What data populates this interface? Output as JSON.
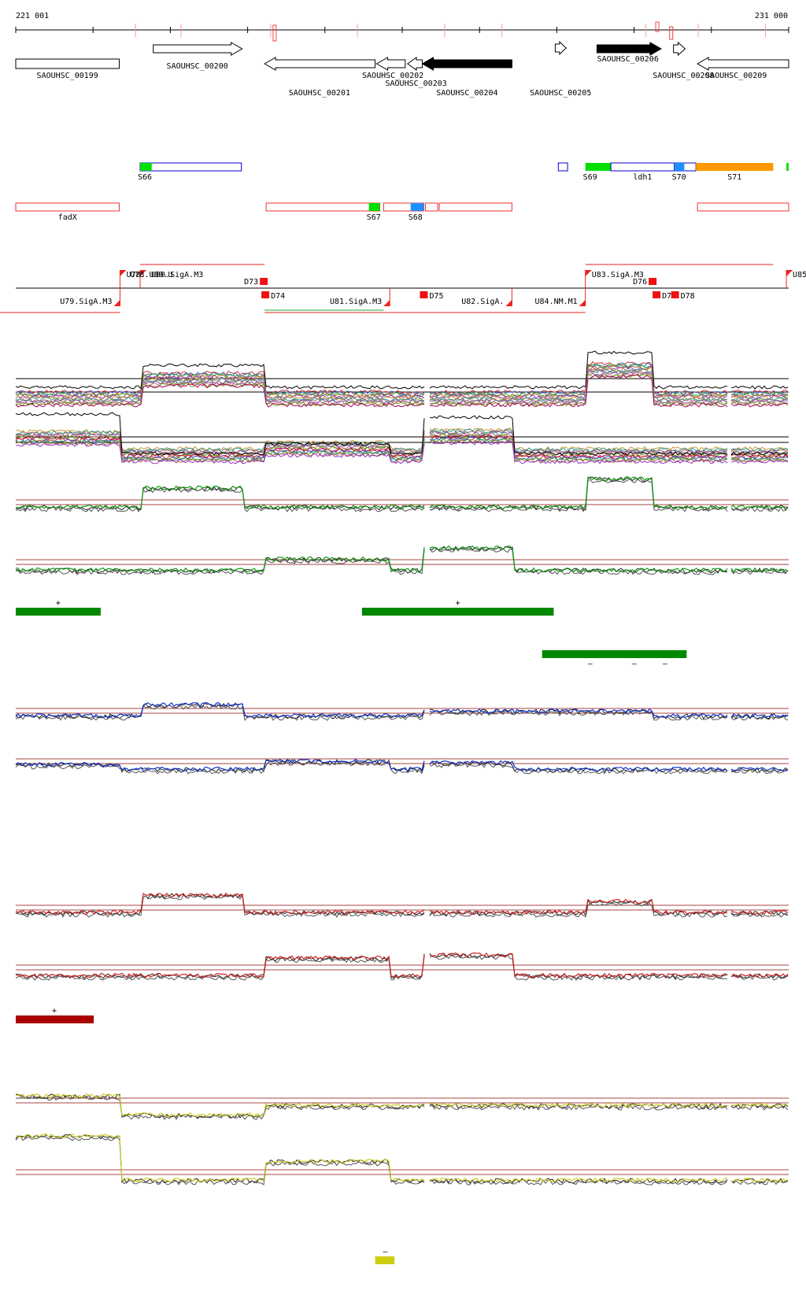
{
  "coordinates": {
    "start_label": "221 001",
    "end_label": "231 000",
    "start": 221001,
    "end": 231000
  },
  "genes": [
    {
      "name": "SAOUHSC_00199",
      "start": 221001,
      "end": 222340,
      "strand": "none",
      "filled": false
    },
    {
      "name": "SAOUHSC_00200",
      "start": 222780,
      "end": 223930,
      "strand": "+",
      "filled": false
    },
    {
      "name": "SAOUHSC_00201",
      "start": 224220,
      "end": 225650,
      "strand": "-",
      "filled": false
    },
    {
      "name": "SAOUHSC_00202",
      "start": 225670,
      "end": 226040,
      "strand": "-",
      "filled": false
    },
    {
      "name": "SAOUHSC_00203",
      "start": 226070,
      "end": 226260,
      "strand": "-",
      "filled": false
    },
    {
      "name": "SAOUHSC_00204",
      "start": 226260,
      "end": 227420,
      "strand": "-",
      "filled": true
    },
    {
      "name": "SAOUHSC_00205",
      "start": 227980,
      "end": 228120,
      "strand": "+",
      "filled": false
    },
    {
      "name": "SAOUHSC_00206",
      "start": 228520,
      "end": 229350,
      "strand": "+",
      "filled": true
    },
    {
      "name": "SAOUHSC_00208",
      "start": 229510,
      "end": 229660,
      "strand": "+",
      "filled": false
    },
    {
      "name": "SAOUHSC_00209",
      "start": 229820,
      "end": 231000,
      "strand": "-",
      "filled": false
    }
  ],
  "gene_labels": [
    {
      "text": "SAOUHSC_00199",
      "pos": 221670,
      "row": 0
    },
    {
      "text": "SAOUHSC_00200",
      "pos": 223350,
      "row": 1
    },
    {
      "text": "SAOUHSC_00201",
      "pos": 224930,
      "row": 2
    },
    {
      "text": "SAOUHSC_00202",
      "pos": 225880,
      "row": 3
    },
    {
      "text": "SAOUHSC_00203",
      "pos": 226180,
      "row": 4
    },
    {
      "text": "SAOUHSC_00204",
      "pos": 226840,
      "row": 2
    },
    {
      "text": "SAOUHSC_00205",
      "pos": 228050,
      "row": 5
    },
    {
      "text": "SAOUHSC_00206",
      "pos": 228920,
      "row": 6
    },
    {
      "text": "SAOUHSC_00208",
      "pos": 229640,
      "row": 3
    },
    {
      "text": "SAOUHSC_00209",
      "pos": 230320,
      "row": 3
    }
  ],
  "plus_features": [
    {
      "label": "S66",
      "start": 222610,
      "end": 223920,
      "marker_end": 222760,
      "marker_color": "#00e000",
      "box_color": "#0000cc"
    },
    {
      "label": "",
      "start": 228020,
      "end": 228140,
      "box_color": "#0000cc"
    },
    {
      "label": "S69",
      "start": 228370,
      "end": 228700,
      "marker_end": 228700,
      "marker_color": "#00e000",
      "box_color": "#00e000"
    },
    {
      "label": "ldh1",
      "start": 228700,
      "end": 229520,
      "box_color": "#0000cc"
    },
    {
      "label": "S70",
      "start": 229520,
      "end": 229800,
      "marker_end": 229650,
      "marker_color": "#1e90ff",
      "box_color": "#0000cc"
    },
    {
      "label": "S71",
      "start": 229800,
      "end": 230800,
      "marker_end": 230800,
      "marker_color": "#ff9900",
      "box_color": "#ff9900"
    },
    {
      "label": "",
      "start": 230970,
      "end": 231000,
      "marker_end": 231000,
      "marker_color": "#00e000",
      "box_color": "#00e000"
    }
  ],
  "minus_features": [
    {
      "label": "fadX",
      "start": 221001,
      "end": 222340,
      "box_color": "#ee3333"
    },
    {
      "label": "S67",
      "start": 224240,
      "end": 225710,
      "marker_start": 225570,
      "marker_color": "#00e000"
    },
    {
      "label": "S68",
      "start": 225760,
      "end": 226280,
      "marker_start": 226110,
      "marker_color": "#1e90ff"
    },
    {
      "label": "",
      "start": 226300,
      "end": 226460
    },
    {
      "label": "",
      "start": 226480,
      "end": 227420
    },
    {
      "label": "",
      "start": 229820,
      "end": 231000
    }
  ],
  "promoters_plus": [
    {
      "label": "U78.",
      "pos": 222350
    },
    {
      "label": "U80.SigA.M3",
      "pos": 222610
    },
    {
      "label": "U83.SigA.M3",
      "pos": 228370
    },
    {
      "label": "U85",
      "pos": 230970
    }
  ],
  "promoter_overlap_label": "U78.U80.U",
  "promoters_minus": [
    {
      "label": "U79.SigA.M3",
      "pos": 222350
    },
    {
      "label": "U81.SigA.M3",
      "pos": 225840
    },
    {
      "label": "U82.SigA.",
      "pos": 227420
    },
    {
      "label": "U84.NM.M1",
      "pos": 228370
    }
  ],
  "terminators_plus": [
    {
      "label": "D73",
      "pos": 224220
    },
    {
      "label": "D76",
      "pos": 229250
    }
  ],
  "terminators_minus": [
    {
      "label": "D74",
      "pos": 224220
    },
    {
      "label": "D75",
      "pos": 226270
    },
    {
      "label": "D77",
      "pos": 229280
    },
    {
      "label": "D78",
      "pos": 229520
    }
  ],
  "up_regions": [
    {
      "color": "#008800",
      "start": 221001,
      "end": 222100,
      "row": "plus",
      "sign": "+",
      "sign_pos": 221550
    },
    {
      "color": "#008800",
      "start": 225480,
      "end": 227960,
      "row": "plus",
      "sign": "+",
      "sign_pos": 226720
    },
    {
      "color": "#008800",
      "start": 227810,
      "end": 229680,
      "row": "minus",
      "sign": "–",
      "sign_pos": 228430
    },
    {
      "color": "#008800",
      "start": 229000,
      "end": 229000,
      "row": "minus",
      "sign": "–",
      "sign_pos": 229000
    },
    {
      "color": "#008800",
      "start": 229400,
      "end": 229400,
      "row": "minus",
      "sign": "–",
      "sign_pos": 229400
    },
    {
      "color": "#aa0000",
      "start": 221001,
      "end": 222010,
      "row": "plus",
      "sign": "+",
      "sign_pos": 221500
    },
    {
      "color": "#cccc11",
      "start": 225650,
      "end": 225900,
      "row": "plus",
      "sign": "–",
      "sign_pos": 225780
    }
  ],
  "tracks": [
    {
      "id": "green",
      "color": "#119911"
    },
    {
      "id": "blue",
      "color": "#1133cc"
    },
    {
      "id": "red",
      "color": "#cc2222"
    },
    {
      "id": "yellow",
      "color": "#cccc22"
    }
  ]
}
